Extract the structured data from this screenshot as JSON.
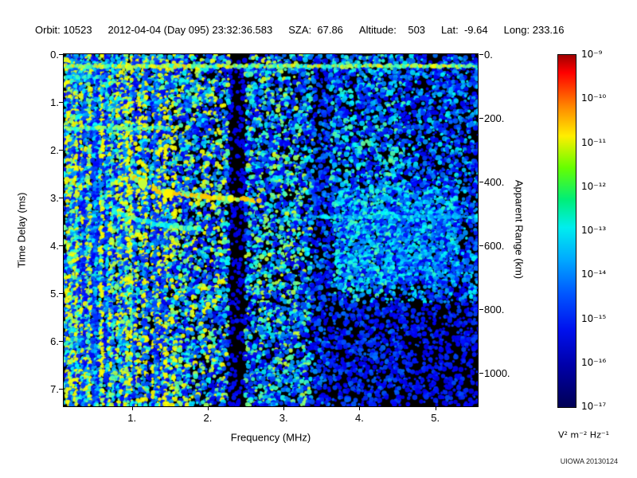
{
  "header": {
    "fields": [
      "Orbit: 10523",
      "2012-04-04 (Day 095) 23:32:36.583",
      "SZA:  67.86",
      "Altitude:    503",
      "Lat:  -9.64",
      "Long: 233.16"
    ]
  },
  "chart_data": {
    "type": "heatmap",
    "subtype": "radar-sounder-ionogram-spectrogram",
    "title": "",
    "xlabel": "Frequency (MHz)",
    "ylabel_left": "Time Delay (ms)",
    "ylabel_right": "Apparent Range (km)",
    "xlim_mhz": [
      0.1,
      5.56
    ],
    "ylim_ms": [
      0,
      7.37
    ],
    "x_ticks": [
      1,
      2,
      3,
      4,
      5
    ],
    "x_tick_labels": [
      "1.",
      "2.",
      "3.",
      "4.",
      "5."
    ],
    "y_ticks_ms": [
      0,
      1,
      2,
      3,
      4,
      5,
      6,
      7
    ],
    "y_tick_labels_ms": [
      "0.",
      "1.",
      "2.",
      "3.",
      "4.",
      "5.",
      "6.",
      "7."
    ],
    "y_ticks_km": [
      0,
      200,
      400,
      600,
      800,
      1000
    ],
    "y_tick_labels_km": [
      "0.",
      "200.",
      "400.",
      "600.",
      "800.",
      "1000."
    ],
    "km_per_ms": 150,
    "background": "#000000",
    "colorbar": {
      "scale": "log10",
      "range_exponents": [
        -9,
        -17
      ],
      "tick_labels": [
        "10⁻⁹",
        "10⁻¹⁰",
        "10⁻¹¹",
        "10⁻¹²",
        "10⁻¹³",
        "10⁻¹⁴",
        "10⁻¹⁵",
        "10⁻¹⁶",
        "10⁻¹⁷"
      ],
      "units": "V² m⁻² Hz⁻¹",
      "gradient": [
        {
          "c": "#a00000",
          "p": 0
        },
        {
          "c": "#ff0000",
          "p": 5
        },
        {
          "c": "#ff8c00",
          "p": 15
        },
        {
          "c": "#ffee00",
          "p": 23
        },
        {
          "c": "#66ff00",
          "p": 32
        },
        {
          "c": "#00ee77",
          "p": 41
        },
        {
          "c": "#00eeee",
          "p": 49
        },
        {
          "c": "#00aaff",
          "p": 58
        },
        {
          "c": "#0055ff",
          "p": 68
        },
        {
          "c": "#0011ee",
          "p": 78
        },
        {
          "c": "#0000aa",
          "p": 88
        },
        {
          "c": "#000055",
          "p": 100
        }
      ]
    },
    "features": {
      "noise_envelope": [
        {
          "fmax": 0.35,
          "amp": 0.7
        },
        {
          "fmax": 1.55,
          "amp": 0.6
        },
        {
          "fmax": 2.28,
          "amp": 0.4
        },
        {
          "fmax": 2.5,
          "amp": 0.06
        },
        {
          "fmax": 3.38,
          "amp": 0.33
        },
        {
          "fmax": 3.62,
          "amp": 0.15
        },
        {
          "fmax": 4.6,
          "amp": 0.26
        },
        {
          "fmax": 5.6,
          "amp": 0.2
        }
      ],
      "vertical_lines": [
        {
          "f": 0.14,
          "amp": 0.6
        },
        {
          "f": 0.2,
          "amp": 0.8
        },
        {
          "f": 0.26,
          "amp": 0.7
        },
        {
          "f": 0.33,
          "amp": 0.6
        },
        {
          "f": 0.41,
          "amp": 0.85
        },
        {
          "f": 0.5,
          "amp": 0.6
        },
        {
          "f": 0.57,
          "amp": 0.7
        },
        {
          "f": 0.66,
          "amp": 0.55
        },
        {
          "f": 0.73,
          "amp": 0.75
        },
        {
          "f": 0.83,
          "amp": 0.6
        },
        {
          "f": 0.91,
          "amp": 0.9
        },
        {
          "f": 0.99,
          "amp": 0.8
        },
        {
          "f": 1.15,
          "amp": 0.55
        },
        {
          "f": 1.31,
          "amp": 0.5
        },
        {
          "f": 1.41,
          "amp": 0.45
        },
        {
          "f": 1.7,
          "amp": 0.35
        }
      ],
      "horizontal_lines": [
        {
          "d": 0.25,
          "f0": 0.1,
          "f1": 5.56,
          "amp": 0.8
        },
        {
          "d": 0.48,
          "f0": 0.1,
          "f1": 0.65,
          "amp": 0.55
        },
        {
          "d": 1.55,
          "f0": 0.1,
          "f1": 1.5,
          "amp": 0.7
        },
        {
          "d": 3.4,
          "f0": 3.35,
          "f1": 5.56,
          "amp": 0.5
        }
      ],
      "echo_trace_main": {
        "amp": 0.85,
        "points_f_ms": [
          [
            1.02,
            2.55
          ],
          [
            1.15,
            2.72
          ],
          [
            1.32,
            2.86
          ],
          [
            1.55,
            2.92
          ],
          [
            1.8,
            2.96
          ],
          [
            2.05,
            3.0
          ],
          [
            2.3,
            3.02
          ],
          [
            2.52,
            3.05
          ],
          [
            2.7,
            3.1
          ]
        ]
      },
      "echo_trace_secondary": {
        "amp": 0.55,
        "points_f_ms": [
          [
            0.75,
            3.28
          ],
          [
            0.98,
            3.42
          ],
          [
            1.22,
            3.52
          ],
          [
            1.48,
            3.6
          ],
          [
            1.72,
            3.64
          ],
          [
            1.95,
            3.68
          ]
        ]
      },
      "hot_spots": [
        {
          "f": 0.95,
          "d": 0.25,
          "amp": 0.65,
          "r": 4
        },
        {
          "f": 1.15,
          "d": 2.72,
          "amp": 0.65,
          "r": 5
        },
        {
          "f": 1.48,
          "d": 2.92,
          "amp": 0.63,
          "r": 5
        },
        {
          "f": 2.3,
          "d": 3.02,
          "amp": 0.62,
          "r": 4
        }
      ],
      "diffuse_patch": {
        "f0": 3.7,
        "f1": 5.3,
        "d0": 2.8,
        "d1": 4.8,
        "amp": 0.3
      }
    }
  },
  "footer": {
    "credit": "UIOWA 20130124"
  }
}
